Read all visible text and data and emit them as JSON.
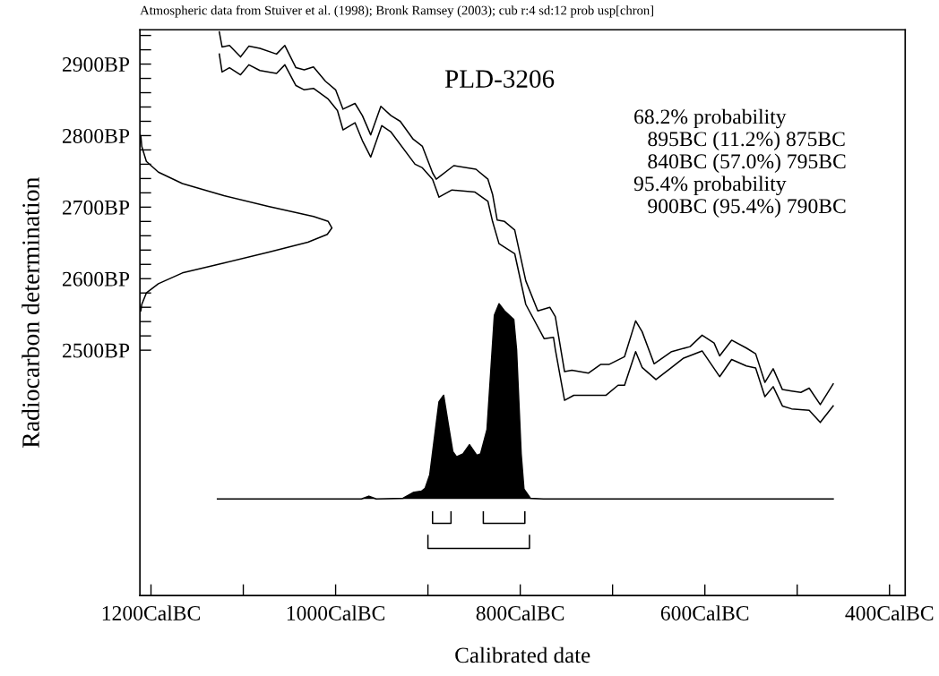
{
  "chart_data": {
    "type": "line",
    "title": "PLD-3206",
    "xlabel": "Calibrated date",
    "ylabel": "Radiocarbon determination",
    "annotations": [
      "Atmospheric data from Stuiver et al. (1998); Bronk Ramsey (2003); cub r:4 sd:12 prob usp[chron]",
      "68.2% probability",
      "895BC (11.2%) 875BC",
      "840BC (57.0%) 795BC",
      "95.4% probability",
      "900BC (95.4%) 790BC"
    ],
    "xlim": [
      1212,
      383
    ],
    "ylim": [
      2157,
      2948
    ],
    "xticks": [
      {
        "value": 1200,
        "label": "1200CalBC"
      },
      {
        "value": 1100,
        "label": null
      },
      {
        "value": 1000,
        "label": "1000CalBC"
      },
      {
        "value": 900,
        "label": null
      },
      {
        "value": 800,
        "label": "800CalBC"
      },
      {
        "value": 700,
        "label": null
      },
      {
        "value": 600,
        "label": "600CalBC"
      },
      {
        "value": 500,
        "label": null
      },
      {
        "value": 400,
        "label": "400CalBC"
      }
    ],
    "yticks": [
      {
        "value": 2500,
        "label": "2500BP"
      },
      {
        "value": 2520,
        "label": null
      },
      {
        "value": 2540,
        "label": null
      },
      {
        "value": 2560,
        "label": null
      },
      {
        "value": 2580,
        "label": null
      },
      {
        "value": 2600,
        "label": "2600BP"
      },
      {
        "value": 2620,
        "label": null
      },
      {
        "value": 2640,
        "label": null
      },
      {
        "value": 2660,
        "label": null
      },
      {
        "value": 2680,
        "label": null
      },
      {
        "value": 2700,
        "label": "2700BP"
      },
      {
        "value": 2720,
        "label": null
      },
      {
        "value": 2740,
        "label": null
      },
      {
        "value": 2760,
        "label": null
      },
      {
        "value": 2780,
        "label": null
      },
      {
        "value": 2800,
        "label": "2800BP"
      },
      {
        "value": 2820,
        "label": null
      },
      {
        "value": 2840,
        "label": null
      },
      {
        "value": 2860,
        "label": null
      },
      {
        "value": 2880,
        "label": null
      },
      {
        "value": 2900,
        "label": "2900BP"
      },
      {
        "value": 2920,
        "label": null
      },
      {
        "value": 2940,
        "label": null
      }
    ],
    "grid": false,
    "legend": false,
    "marker": "none",
    "line_style": "solid",
    "series": [
      {
        "color": "#000000",
        "x": [
          1126,
          1123,
          1115,
          1103,
          1094,
          1082,
          1064,
          1055,
          1043,
          1034,
          1024,
          1011,
          1000,
          992,
          979,
          971,
          962,
          951,
          940,
          930,
          916,
          906,
          895,
          891,
          872,
          848,
          835,
          830,
          825,
          817,
          806,
          794,
          781,
          768,
          762,
          752,
          744,
          726,
          713,
          704,
          687,
          675,
          668,
          655,
          636,
          616,
          603,
          590,
          584,
          571,
          555,
          545,
          535,
          526,
          516,
          506,
          496,
          487,
          475,
          461
        ],
        "values": [
          2945,
          2924,
          2926,
          2910,
          2925,
          2922,
          2914,
          2926,
          2895,
          2892,
          2896,
          2876,
          2864,
          2837,
          2845,
          2828,
          2801,
          2841,
          2828,
          2820,
          2795,
          2785,
          2748,
          2739,
          2758,
          2753,
          2739,
          2718,
          2682,
          2680,
          2668,
          2597,
          2555,
          2560,
          2547,
          2470,
          2472,
          2468,
          2480,
          2480,
          2491,
          2541,
          2526,
          2481,
          2498,
          2505,
          2521,
          2510,
          2492,
          2514,
          2503,
          2495,
          2455,
          2474,
          2445,
          2443,
          2441,
          2447,
          2424,
          2453
        ]
      },
      {
        "color": "#000000",
        "x": [
          1126,
          1123,
          1115,
          1103,
          1094,
          1082,
          1064,
          1055,
          1043,
          1034,
          1024,
          1008,
          998,
          992,
          979,
          971,
          962,
          950,
          940,
          914,
          906,
          895,
          888,
          874,
          849,
          835,
          830,
          823,
          806,
          794,
          774,
          764,
          762,
          752,
          742,
          707,
          694,
          687,
          675,
          668,
          653,
          636,
          623,
          603,
          584,
          571,
          555,
          545,
          535,
          526,
          516,
          506,
          487,
          475,
          461
        ],
        "values": [
          2914,
          2889,
          2895,
          2885,
          2899,
          2891,
          2887,
          2899,
          2870,
          2864,
          2866,
          2851,
          2835,
          2808,
          2818,
          2793,
          2770,
          2814,
          2805,
          2760,
          2755,
          2739,
          2714,
          2724,
          2721,
          2708,
          2680,
          2649,
          2635,
          2564,
          2516,
          2518,
          2501,
          2430,
          2437,
          2437,
          2451,
          2451,
          2498,
          2476,
          2459,
          2476,
          2489,
          2499,
          2463,
          2487,
          2478,
          2475,
          2435,
          2449,
          2422,
          2418,
          2416,
          2399,
          2422
        ]
      },
      {
        "color": "#000000",
        "x": [
          1211,
          1210,
          1205,
          1192,
          1166,
          1121,
          1073,
          1024,
          1008,
          1004,
          1009,
          1030,
          1073,
          1121,
          1166,
          1192,
          1205,
          1210,
          1211
        ],
        "values": [
          2800,
          2785,
          2764,
          2749,
          2733,
          2716,
          2701,
          2687,
          2680,
          2671,
          2662,
          2651,
          2637,
          2622,
          2608,
          2593,
          2580,
          2564,
          2555
        ]
      },
      {
        "type": "area",
        "color": "#000000",
        "x": [
          1128,
          972,
          964,
          956,
          927,
          916,
          907,
          903,
          898,
          888,
          883,
          878,
          873,
          869,
          862,
          855,
          847,
          843,
          836,
          828,
          823,
          817,
          807,
          804,
          799,
          796,
          789,
          775,
          461
        ],
        "values": [
          2292,
          2292,
          2296,
          2292,
          2293,
          2301,
          2303,
          2307,
          2326,
          2428,
          2437,
          2397,
          2358,
          2351,
          2355,
          2368,
          2353,
          2355,
          2389,
          2549,
          2565,
          2555,
          2543,
          2501,
          2355,
          2306,
          2293,
          2292,
          2292
        ]
      },
      {
        "color": "#000000",
        "x": [
          895,
          895,
          875,
          875
        ],
        "values": [
          2274,
          2258,
          2258,
          2274
        ]
      },
      {
        "color": "#000000",
        "x": [
          840,
          840,
          795,
          795
        ],
        "values": [
          2274,
          2258,
          2258,
          2274
        ]
      },
      {
        "color": "#000000",
        "x": [
          900,
          900,
          790,
          790
        ],
        "values": [
          2241,
          2223,
          2223,
          2241
        ]
      }
    ]
  }
}
